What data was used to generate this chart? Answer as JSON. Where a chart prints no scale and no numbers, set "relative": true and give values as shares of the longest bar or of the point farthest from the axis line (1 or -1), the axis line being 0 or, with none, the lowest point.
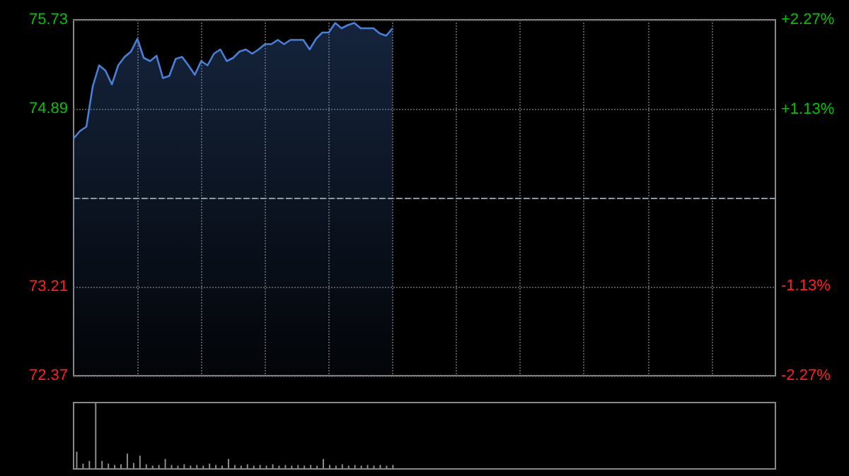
{
  "chart_data": [
    {
      "type": "area",
      "categories": [
        null,
        null,
        null,
        null,
        null,
        null,
        null,
        null,
        null,
        null,
        null,
        null,
        null,
        null,
        null,
        null,
        null,
        null,
        null,
        null,
        null,
        null,
        null,
        null,
        null,
        null,
        null,
        null,
        null,
        null,
        null,
        null,
        null,
        null,
        null,
        null,
        null,
        null,
        null,
        null,
        null,
        null,
        null,
        null,
        null,
        null,
        null,
        null,
        null,
        null,
        null,
        null,
        null,
        null,
        null,
        null,
        null,
        null,
        null,
        null,
        null,
        null,
        null,
        null,
        null,
        null,
        null,
        null,
        null,
        null,
        null,
        null,
        null,
        null,
        null,
        null,
        null,
        null,
        null,
        null,
        null,
        null,
        null,
        null,
        null,
        null,
        null,
        null,
        null,
        null,
        null,
        null,
        null,
        null,
        null,
        null,
        null,
        null,
        null,
        null,
        null,
        null,
        null,
        null,
        null,
        null,
        null,
        null,
        null,
        null,
        null
      ],
      "series": [
        {
          "color": "#4a7fd6",
          "values": [
            74.61,
            74.68,
            74.72,
            75.1,
            75.3,
            75.25,
            75.12,
            75.3,
            75.38,
            75.43,
            75.55,
            75.37,
            75.34,
            75.39,
            75.18,
            75.2,
            75.36,
            75.38,
            75.3,
            75.21,
            75.34,
            75.3,
            75.41,
            75.45,
            75.34,
            75.37,
            75.43,
            75.45,
            75.41,
            75.45,
            75.5,
            75.5,
            75.54,
            75.5,
            75.54,
            75.54,
            75.54,
            75.45,
            75.55,
            75.61,
            75.61,
            75.7,
            75.65,
            75.68,
            75.7,
            75.65,
            75.65,
            75.65,
            75.6,
            75.58,
            75.65,
            null,
            null,
            null,
            null,
            null,
            null,
            null,
            null,
            null,
            null,
            null,
            null,
            null,
            null,
            null,
            null,
            null,
            null,
            null,
            null,
            null,
            null,
            null,
            null,
            null,
            null,
            null,
            null,
            null,
            null,
            null,
            null,
            null,
            null,
            null,
            null,
            null,
            null,
            null,
            null,
            null,
            null,
            null,
            null,
            null,
            null,
            null,
            null,
            null,
            null,
            null,
            null,
            null,
            null,
            null,
            null,
            null,
            null,
            null,
            null
          ]
        }
      ],
      "ylim": [
        72.37,
        75.73
      ],
      "yticks": [
        72.37,
        73.21,
        {
          "value": 74.05,
          "label": null
        },
        74.89,
        75.73
      ],
      "y2lim": [
        -2.27,
        2.27
      ],
      "y2ticks": [
        {
          "value": -2.27,
          "label": "-2.27%"
        },
        {
          "value": -1.13,
          "label": "-1.13%"
        },
        {
          "value": 0,
          "label": null
        },
        {
          "value": 1.13,
          "label": "+1.13%"
        },
        {
          "value": 2.27,
          "label": "+2.27%"
        }
      ],
      "ref_lines": [
        {
          "axis": "y",
          "value": 74.05,
          "line_style": "dashed",
          "color": "#8a9aa8"
        }
      ],
      "grid": true
    },
    {
      "type": "bar",
      "relative": true,
      "categories": [
        null,
        null,
        null,
        null,
        null,
        null,
        null,
        null,
        null,
        null,
        null,
        null,
        null,
        null,
        null,
        null,
        null,
        null,
        null,
        null,
        null,
        null,
        null,
        null,
        null,
        null,
        null,
        null,
        null,
        null,
        null,
        null,
        null,
        null,
        null,
        null,
        null,
        null,
        null,
        null,
        null,
        null,
        null,
        null,
        null,
        null,
        null,
        null,
        null,
        null,
        null,
        null,
        null,
        null,
        null,
        null,
        null,
        null,
        null,
        null,
        null,
        null,
        null,
        null,
        null,
        null,
        null,
        null,
        null,
        null,
        null,
        null,
        null,
        null,
        null,
        null,
        null,
        null,
        null,
        null,
        null,
        null,
        null,
        null,
        null,
        null,
        null,
        null,
        null,
        null,
        null,
        null,
        null,
        null,
        null,
        null,
        null,
        null,
        null,
        null,
        null,
        null,
        null,
        null,
        null,
        null,
        null,
        null,
        null,
        null,
        null
      ],
      "series": [
        {
          "color": "#8c8c8c",
          "values": [
            0.26,
            0.08,
            0.12,
            1,
            0.12,
            0.08,
            0.06,
            0.07,
            0.23,
            0.09,
            0.2,
            0.07,
            0.05,
            0.06,
            0.15,
            0.06,
            0.05,
            0.07,
            0.05,
            0.06,
            0.05,
            0.08,
            0.06,
            0.05,
            0.15,
            0.06,
            0.05,
            0.07,
            0.05,
            0.06,
            0.05,
            0.07,
            0.05,
            0.06,
            0.05,
            0.06,
            0.05,
            0.06,
            0.05,
            0.15,
            0.06,
            0.05,
            0.07,
            0.05,
            0.06,
            0.05,
            0.06,
            0.05,
            0.06,
            0.05,
            0.06,
            null,
            null,
            null,
            null,
            null,
            null,
            null,
            null,
            null,
            null,
            null,
            null,
            null,
            null,
            null,
            null,
            null,
            null,
            null,
            null,
            null,
            null,
            null,
            null,
            null,
            null,
            null,
            null,
            null,
            null,
            null,
            null,
            null,
            null,
            null,
            null,
            null,
            null,
            null,
            null,
            null,
            null,
            null,
            null,
            null,
            null,
            null,
            null,
            null,
            null,
            null,
            null,
            null,
            null,
            null,
            null,
            null,
            null,
            null,
            null
          ]
        }
      ]
    }
  ]
}
